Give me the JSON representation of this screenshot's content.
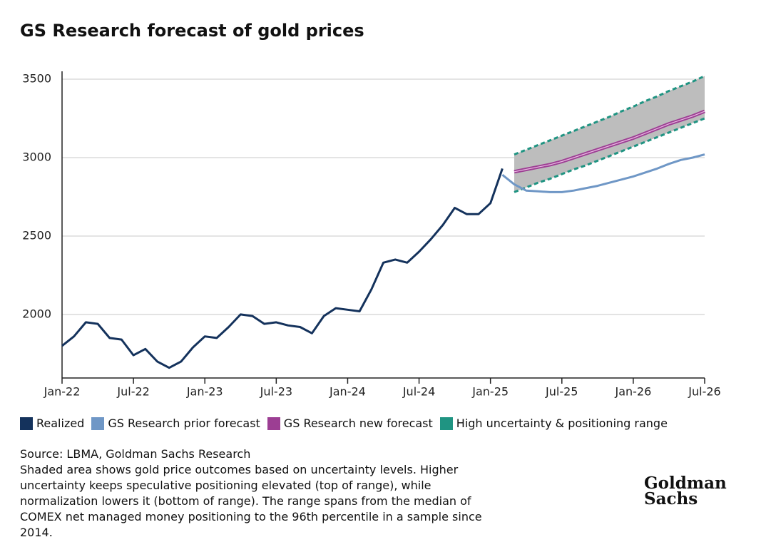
{
  "chart_data": {
    "type": "line",
    "title": "GS Research forecast of gold prices",
    "xlim": [
      "2022-01",
      "2026-07"
    ],
    "xticks": [
      {
        "value": "2022-01",
        "label": "Jan-22"
      },
      {
        "value": "2022-07",
        "label": "Jul-22"
      },
      {
        "value": "2023-01",
        "label": "Jan-23"
      },
      {
        "value": "2023-07",
        "label": "Jul-23"
      },
      {
        "value": "2024-01",
        "label": "Jan-24"
      },
      {
        "value": "2024-07",
        "label": "Jul-24"
      },
      {
        "value": "2025-01",
        "label": "Jan-25"
      },
      {
        "value": "2025-07",
        "label": "Jul-25"
      },
      {
        "value": "2026-01",
        "label": "Jan-26"
      },
      {
        "value": "2026-07",
        "label": "Jul-26"
      }
    ],
    "ylim": [
      1595,
      3550
    ],
    "yticks": [
      2000,
      2500,
      3000,
      3500
    ],
    "grid": true,
    "series": [
      {
        "name": "Realized",
        "color": "#14325c",
        "x": [
          "2022-01",
          "2022-02",
          "2022-03",
          "2022-04",
          "2022-05",
          "2022-06",
          "2022-07",
          "2022-08",
          "2022-09",
          "2022-10",
          "2022-11",
          "2022-12",
          "2023-01",
          "2023-02",
          "2023-03",
          "2023-04",
          "2023-05",
          "2023-06",
          "2023-07",
          "2023-08",
          "2023-09",
          "2023-10",
          "2023-11",
          "2023-12",
          "2024-01",
          "2024-02",
          "2024-03",
          "2024-04",
          "2024-05",
          "2024-06",
          "2024-07",
          "2024-08",
          "2024-09",
          "2024-10",
          "2024-11",
          "2024-12",
          "2025-01",
          "2025-02"
        ],
        "values": [
          1800,
          1860,
          1950,
          1940,
          1850,
          1840,
          1740,
          1780,
          1700,
          1660,
          1700,
          1790,
          1860,
          1850,
          1920,
          2000,
          1990,
          1940,
          1950,
          1930,
          1920,
          1880,
          1990,
          2040,
          2030,
          2020,
          2160,
          2330,
          2350,
          2330,
          2400,
          2480,
          2570,
          2680,
          2640,
          2640,
          2710,
          2930
        ]
      },
      {
        "name": "GS Research prior forecast",
        "color": "#6f97c6",
        "x": [
          "2025-02",
          "2025-03",
          "2025-04",
          "2025-05",
          "2025-06",
          "2025-07",
          "2025-08",
          "2025-09",
          "2025-10",
          "2025-11",
          "2025-12",
          "2026-01",
          "2026-02",
          "2026-03",
          "2026-04",
          "2026-05",
          "2026-06",
          "2026-07"
        ],
        "values": [
          2890,
          2830,
          2790,
          2785,
          2780,
          2780,
          2790,
          2805,
          2820,
          2840,
          2860,
          2880,
          2905,
          2930,
          2960,
          2985,
          3000,
          3020
        ]
      },
      {
        "name": "GS Research new forecast",
        "color": "#9c3e93",
        "x": [
          "2025-03",
          "2025-04",
          "2025-05",
          "2025-06",
          "2025-07",
          "2025-08",
          "2025-09",
          "2025-10",
          "2025-11",
          "2025-12",
          "2026-01",
          "2026-02",
          "2026-03",
          "2026-04",
          "2026-05",
          "2026-06",
          "2026-07"
        ],
        "values": [
          2910,
          2925,
          2940,
          2955,
          2975,
          3000,
          3025,
          3050,
          3075,
          3100,
          3125,
          3155,
          3185,
          3215,
          3240,
          3265,
          3295
        ]
      },
      {
        "name": "High uncertainty & positioning range",
        "color": "#1f9482",
        "fill": "#bdbdbd",
        "x": [
          "2025-03",
          "2025-04",
          "2025-05",
          "2025-06",
          "2025-07",
          "2025-08",
          "2025-09",
          "2025-10",
          "2025-11",
          "2025-12",
          "2026-01",
          "2026-02",
          "2026-03",
          "2026-04",
          "2026-05",
          "2026-06",
          "2026-07"
        ],
        "high": [
          3020,
          3050,
          3080,
          3110,
          3140,
          3170,
          3200,
          3230,
          3260,
          3295,
          3325,
          3360,
          3390,
          3425,
          3455,
          3485,
          3520
        ],
        "low": [
          2780,
          2810,
          2840,
          2865,
          2895,
          2925,
          2950,
          2980,
          3010,
          3040,
          3070,
          3100,
          3130,
          3160,
          3190,
          3220,
          3250
        ]
      }
    ],
    "source": "Source: LBMA, Goldman Sachs Research",
    "note": "Shaded area shows gold price outcomes based on uncertainty levels. Higher uncertainty keeps speculative positioning elevated (top of range), while normalization lowers it (bottom of range). The range spans from the median of COMEX net managed money positioning to the 96th percentile in a sample since 2014.",
    "logo": [
      "Goldman",
      "Sachs"
    ]
  }
}
